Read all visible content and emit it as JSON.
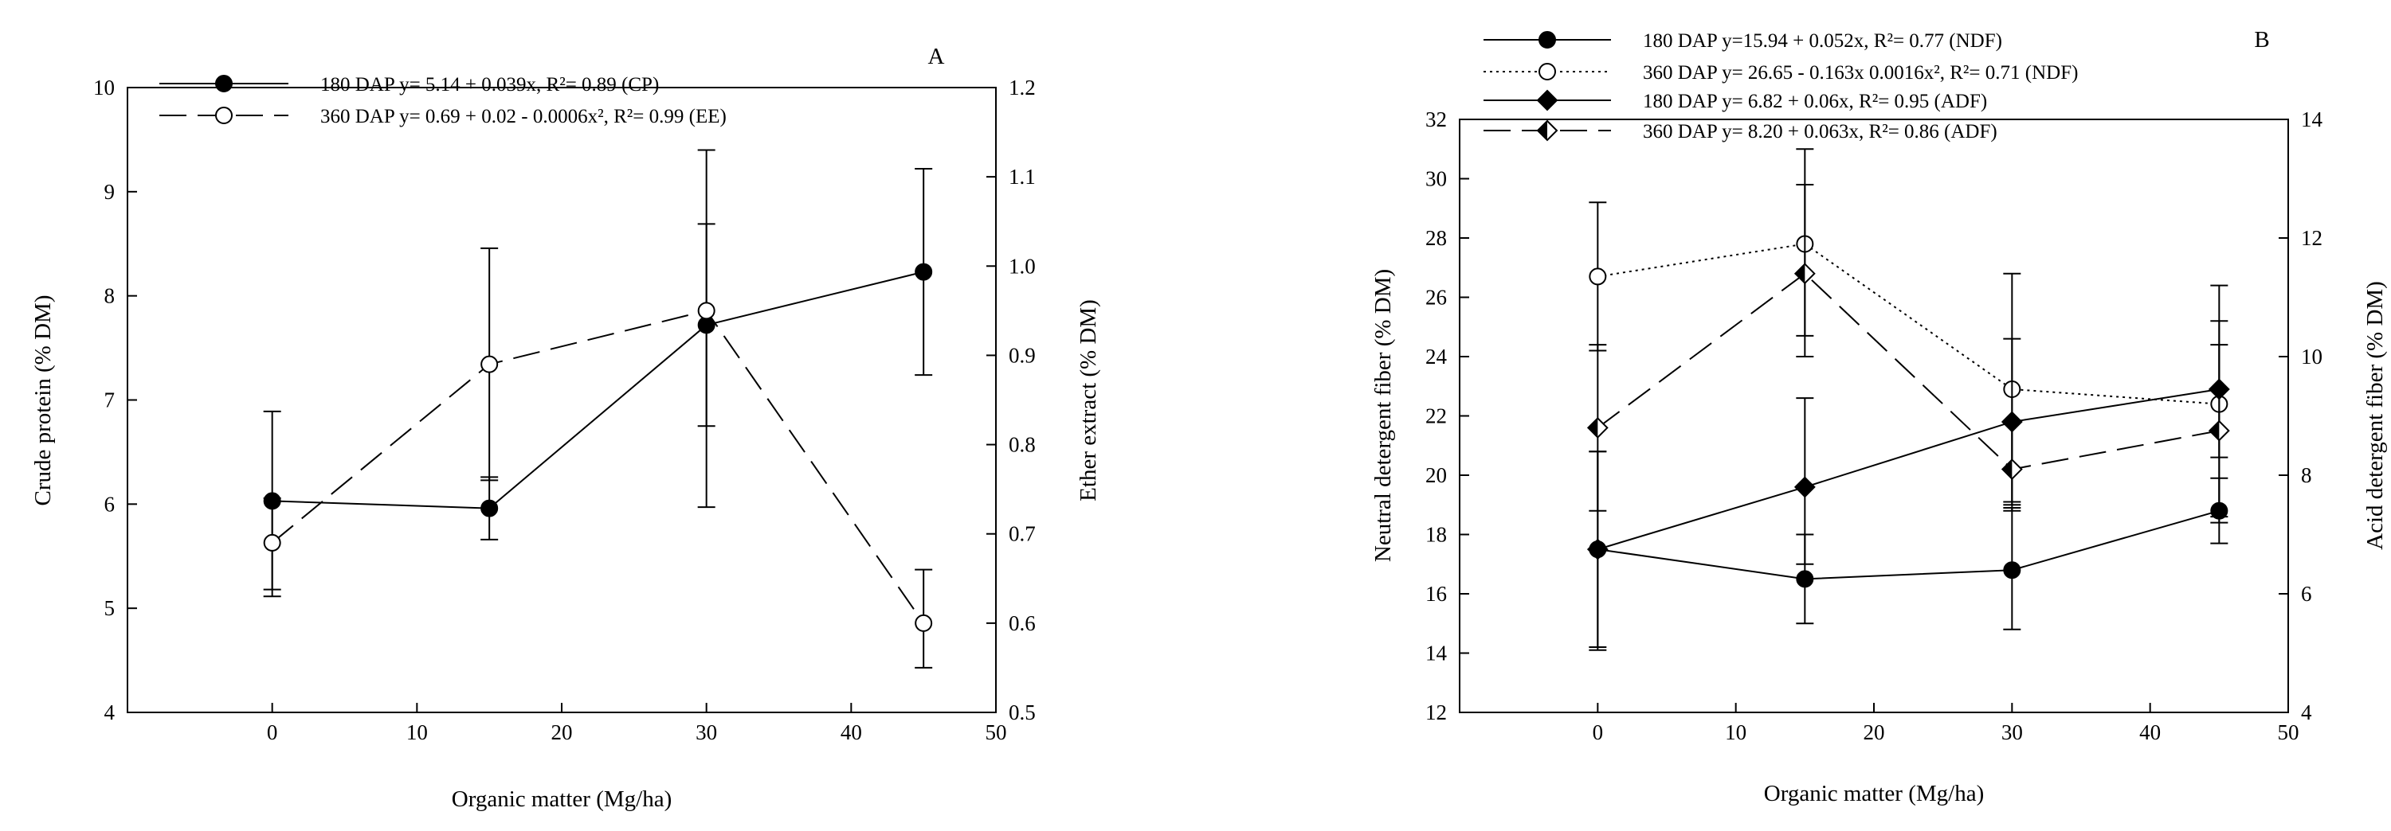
{
  "chart_data": [
    {
      "type": "line",
      "panel_label": "A",
      "title": "",
      "x": [
        0,
        15,
        30,
        45
      ],
      "xlabel": "Organic matter (Mg/ha)",
      "xlim": [
        -10,
        50
      ],
      "xticks": [
        0,
        10,
        20,
        30,
        40,
        50
      ],
      "ylabel": "Crude protein (% DM)",
      "ylim": [
        4,
        10
      ],
      "yticks": [
        4,
        5,
        6,
        7,
        8,
        9,
        10
      ],
      "y2label": "Ether extract (% DM)",
      "y2lim": [
        0.5,
        1.2
      ],
      "y2ticks": [
        "0.5",
        "0.6",
        "0.7",
        "0.8",
        "0.9",
        "1.0",
        "1.1",
        "1.2"
      ],
      "legend_position": "top",
      "series": [
        {
          "name": "180 DAP y= 5.14 + 0.039x, R²= 0.89 (CP)",
          "axis": "left",
          "marker": "filled-circle",
          "line": "solid",
          "values": [
            6.03,
            5.96,
            7.72,
            8.23
          ],
          "error_low": [
            5.18,
            5.66,
            6.75,
            7.24
          ],
          "error_high": [
            6.89,
            6.26,
            8.69,
            9.22
          ]
        },
        {
          "name": "360 DAP y= 0.69 + 0.02 - 0.0006x², R²= 0.99 (EE)",
          "axis": "right",
          "marker": "open-circle",
          "line": "dashed",
          "values": [
            0.69,
            0.89,
            0.95,
            0.6
          ],
          "error_low": [
            0.63,
            0.76,
            0.73,
            0.55
          ],
          "error_high": [
            0.74,
            1.02,
            1.13,
            0.66
          ]
        }
      ]
    },
    {
      "type": "line",
      "panel_label": "B",
      "title": "",
      "x": [
        0,
        15,
        30,
        45
      ],
      "xlabel": "Organic matter (Mg/ha)",
      "xlim": [
        -10,
        50
      ],
      "xticks": [
        0,
        10,
        20,
        30,
        40,
        50
      ],
      "ylabel": "Neutral detergent fiber (% DM)",
      "ylim": [
        12,
        32
      ],
      "yticks": [
        12,
        14,
        16,
        18,
        20,
        22,
        24,
        26,
        28,
        30,
        32
      ],
      "y2label": "Acid detergent fiber (% DM)",
      "y2lim": [
        4,
        14
      ],
      "y2ticks": [
        "4",
        "6",
        "8",
        "10",
        "12",
        "14"
      ],
      "legend_position": "top",
      "series": [
        {
          "name": "180 DAP y=15.94 + 0.052x, R²= 0.77 (NDF)",
          "axis": "left",
          "marker": "filled-circle",
          "line": "solid",
          "values": [
            17.5,
            16.5,
            16.8,
            18.8
          ],
          "error_low": [
            14.1,
            15.0,
            14.8,
            17.7
          ],
          "error_high": [
            20.8,
            18.0,
            18.9,
            19.9
          ]
        },
        {
          "name": "360 DAP y= 26.65 - 0.163x 0.0016x², R²= 0.71 (NDF)",
          "axis": "left",
          "marker": "open-circle",
          "line": "dotted",
          "values": [
            26.7,
            27.8,
            22.9,
            22.4
          ],
          "error_low": [
            24.2,
            24.7,
            19.1,
            18.4
          ],
          "error_high": [
            29.2,
            31.0,
            26.8,
            26.4
          ]
        },
        {
          "name": "180 DAP y= 6.82 + 0.06x, R²= 0.95 (ADF)",
          "axis": "right",
          "marker": "filled-diamond",
          "line": "solid",
          "values": [
            6.75,
            7.8,
            8.9,
            9.45
          ],
          "error_low": [
            5.1,
            6.5,
            7.5,
            8.3
          ],
          "error_high": [
            8.4,
            9.3,
            10.3,
            10.6
          ]
        },
        {
          "name": "360 DAP y= 8.20 + 0.063x, R²= 0.86 (ADF)",
          "axis": "right",
          "marker": "half-diamond",
          "line": "dashed",
          "values": [
            8.8,
            11.4,
            8.1,
            8.75
          ],
          "error_low": [
            7.4,
            10.0,
            7.4,
            7.3
          ],
          "error_high": [
            10.2,
            12.9,
            8.9,
            10.2
          ]
        }
      ]
    }
  ]
}
